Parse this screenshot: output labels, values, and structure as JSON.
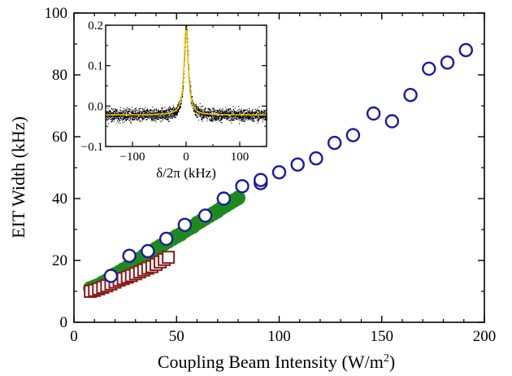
{
  "chart_data": [
    {
      "type": "scatter",
      "title": "",
      "xlabel": "Coupling Beam Intensity (W/m",
      "xlabel_sup": "2",
      "xlabel_end": ")",
      "ylabel": "EIT Width (kHz)",
      "xlim": [
        0,
        200
      ],
      "ylim": [
        0,
        100
      ],
      "xticks": [
        0,
        50,
        100,
        150,
        200
      ],
      "yticks": [
        0,
        20,
        40,
        60,
        80,
        100
      ],
      "grid": false,
      "series": [
        {
          "marker": "open-circle",
          "color": "#1a1aa0",
          "x": [
            18,
            27,
            36,
            45,
            54,
            64,
            73,
            82,
            91,
            91,
            100,
            109,
            118,
            127,
            136,
            146,
            155,
            164,
            173,
            182,
            191
          ],
          "y": [
            15,
            21.5,
            23,
            27,
            31.5,
            34.5,
            40,
            44,
            45,
            46,
            48.5,
            51,
            53,
            58,
            60.5,
            67.5,
            65,
            73.5,
            82,
            84,
            88
          ]
        },
        {
          "marker": "filled-circle",
          "color": "#1e8a1e",
          "x": [
            8,
            10,
            12,
            14,
            16,
            18,
            20,
            22,
            24,
            26,
            28,
            30,
            32,
            34,
            36,
            38,
            40,
            42,
            44,
            46,
            48,
            50,
            52,
            54,
            56,
            58,
            60,
            62,
            64,
            66,
            68,
            70,
            72,
            74,
            76,
            78,
            80
          ],
          "y": [
            11,
            11.5,
            12,
            12.8,
            13.5,
            14.5,
            15.5,
            16.2,
            17,
            17.8,
            18.7,
            19.5,
            20.5,
            21.5,
            22.3,
            23,
            23.8,
            24.6,
            25.4,
            26.2,
            27,
            27.8,
            28.5,
            29.5,
            30.3,
            31,
            32,
            32.8,
            33.6,
            34.4,
            35.2,
            36,
            37,
            37.8,
            38.6,
            39.4,
            40.2
          ]
        },
        {
          "marker": "open-square",
          "color": "#8b1a1a",
          "x": [
            8,
            10,
            12,
            14,
            16,
            18,
            20,
            22,
            24,
            26,
            28,
            30,
            32,
            34,
            36,
            38,
            40,
            42,
            44,
            46
          ],
          "y": [
            10,
            10.3,
            10.8,
            11.3,
            11.8,
            12.4,
            13,
            13.6,
            14.1,
            14.6,
            15.1,
            15.7,
            16.3,
            16.9,
            17.5,
            18,
            18.7,
            19.5,
            20.3,
            21
          ]
        }
      ]
    },
    {
      "type": "scatter",
      "title": "",
      "xlabel": "δ/2π (kHz)",
      "ylabel": "",
      "xlim": [
        -150,
        150
      ],
      "ylim": [
        -0.1,
        0.2
      ],
      "xticks": [
        -100,
        0,
        100
      ],
      "yticks": [
        -0.1,
        0,
        0.1,
        0.2
      ],
      "xtick_labels": [
        "−100",
        "0",
        "100"
      ],
      "ytick_labels": [
        "−0.1",
        "0.0",
        "0.1",
        "0.2"
      ],
      "grid": false,
      "series": [
        {
          "marker": "dot",
          "color": "#000000",
          "description_points": "noisy spectrum"
        },
        {
          "marker": "line",
          "color": "#e8c400",
          "fit": {
            "peak_center": 0,
            "baseline": -0.022,
            "amplitude": 0.218,
            "half_width": 4.5
          }
        }
      ]
    }
  ]
}
